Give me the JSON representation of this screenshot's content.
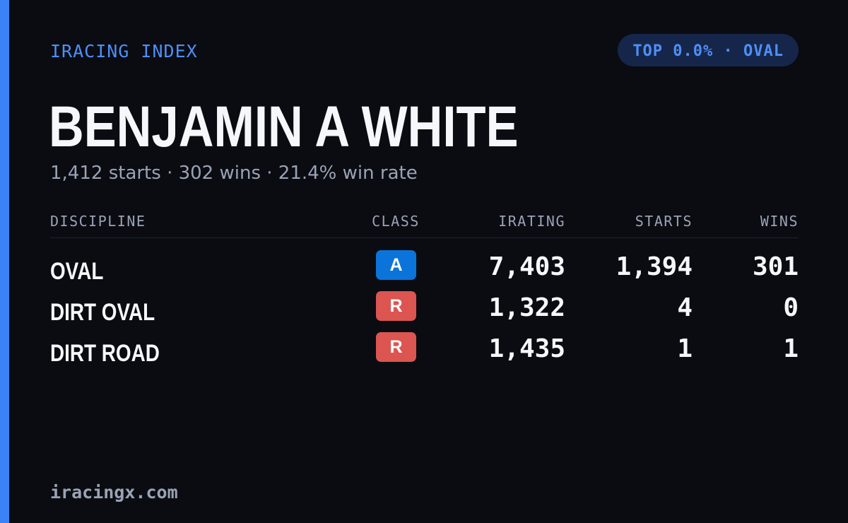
{
  "header": {
    "brand": "IRACING INDEX",
    "rank_badge": "TOP 0.0% · OVAL"
  },
  "driver": {
    "name": "BENJAMIN A WHITE",
    "summary": "1,412 starts · 302 wins · 21.4% win rate"
  },
  "table": {
    "columns": {
      "discipline": "DISCIPLINE",
      "class": "CLASS",
      "irating": "IRATING",
      "starts": "STARTS",
      "wins": "WINS"
    },
    "rows": [
      {
        "discipline": "OVAL",
        "class": "A",
        "class_color": "#0a74da",
        "irating": "7,403",
        "starts": "1,394",
        "wins": "301"
      },
      {
        "discipline": "DIRT OVAL",
        "class": "R",
        "class_color": "#dc5551",
        "irating": "1,322",
        "starts": "4",
        "wins": "0"
      },
      {
        "discipline": "DIRT ROAD",
        "class": "R",
        "class_color": "#dc5551",
        "irating": "1,435",
        "starts": "1",
        "wins": "1"
      }
    ]
  },
  "footer": {
    "site": "iracingx.com"
  },
  "colors": {
    "background": "#0a0c12",
    "accent": "#3b82f6",
    "pill_background": "#16264a",
    "text_primary": "#f6f7fb",
    "text_muted": "#9aa3b5"
  }
}
